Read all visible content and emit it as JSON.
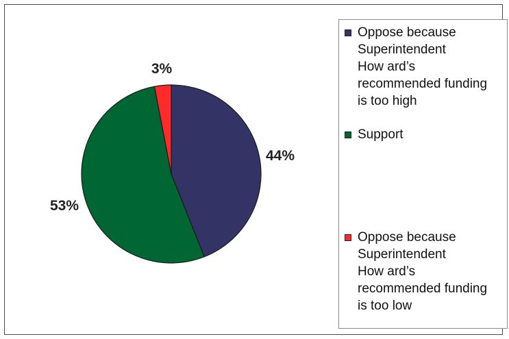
{
  "chart_data": {
    "type": "pie",
    "slices": [
      {
        "label": "Oppose because Superintendent Howard’s recommended funding is too high",
        "legend_text": "Oppose because\nSuperintendent\nHow ard’s\nrecommended funding\nis too high",
        "value": 44,
        "value_label": "44%",
        "color": "#333366"
      },
      {
        "label": "Support",
        "legend_text": "Support",
        "value": 53,
        "value_label": "53%",
        "color": "#006633"
      },
      {
        "label": "Oppose because Superintendent Howard’s recommended funding is too low",
        "legend_text": "Oppose because\nSuperintendent\nHow ard’s\nrecommended funding\nis too low",
        "value": 3,
        "value_label": "3%",
        "color": "#ff2a2a"
      }
    ],
    "legend_placement": "right",
    "title": ""
  }
}
